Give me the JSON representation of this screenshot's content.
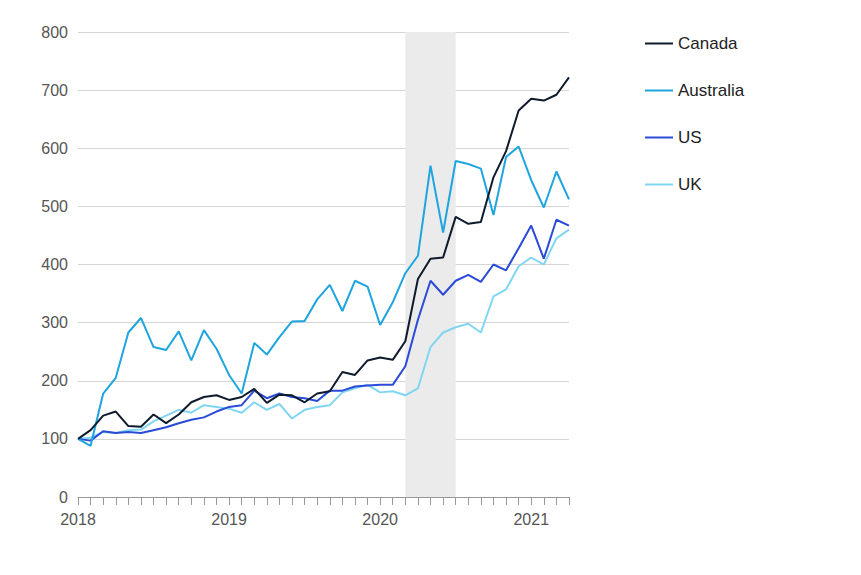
{
  "chart_data": {
    "type": "line",
    "categories": [
      "2018",
      null,
      null,
      null,
      null,
      null,
      null,
      null,
      null,
      null,
      null,
      null,
      "2019",
      null,
      null,
      null,
      null,
      null,
      null,
      null,
      null,
      null,
      null,
      null,
      "2020",
      null,
      null,
      null,
      null,
      null,
      null,
      null,
      null,
      null,
      null,
      null,
      "2021",
      null,
      null,
      null
    ],
    "series": [
      {
        "name": "Canada",
        "color": "#0e1b2c",
        "values": [
          100,
          115,
          140,
          147,
          122,
          121,
          142,
          127,
          142,
          163,
          172,
          175,
          167,
          172,
          186,
          162,
          176,
          175,
          163,
          178,
          182,
          215,
          210,
          235,
          240,
          236,
          268,
          375,
          410,
          412,
          482,
          470,
          473,
          550,
          595,
          665,
          685,
          682,
          692,
          722
        ]
      },
      {
        "name": "Australia",
        "color": "#1ea5df",
        "values": [
          100,
          88,
          178,
          205,
          283,
          308,
          258,
          253,
          285,
          235,
          287,
          255,
          210,
          178,
          265,
          245,
          275,
          302,
          303,
          340,
          365,
          320,
          372,
          362,
          296,
          335,
          385,
          415,
          570,
          455,
          578,
          573,
          565,
          485,
          585,
          603,
          545,
          498,
          560,
          512
        ]
      },
      {
        "name": "US",
        "color": "#2a4bd7",
        "values": [
          100,
          97,
          113,
          110,
          112,
          110,
          115,
          120,
          127,
          133,
          137,
          147,
          155,
          158,
          183,
          170,
          178,
          172,
          170,
          165,
          183,
          183,
          190,
          192,
          193,
          193,
          225,
          305,
          372,
          348,
          372,
          382,
          370,
          400,
          390,
          428,
          467,
          410,
          477,
          467
        ]
      },
      {
        "name": "UK",
        "color": "#80d6f2",
        "values": [
          100,
          102,
          112,
          110,
          115,
          116,
          130,
          140,
          150,
          145,
          158,
          155,
          152,
          145,
          163,
          150,
          160,
          135,
          150,
          155,
          158,
          180,
          187,
          193,
          180,
          182,
          175,
          187,
          258,
          283,
          292,
          298,
          283,
          345,
          357,
          397,
          412,
          400,
          445,
          460
        ]
      }
    ],
    "shaded_range": {
      "from": 26,
      "to": 30
    },
    "ylim": [
      0,
      800
    ],
    "yticks": [
      0,
      100,
      200,
      300,
      400,
      500,
      600,
      700,
      800
    ],
    "grid": true,
    "legend": "right"
  }
}
